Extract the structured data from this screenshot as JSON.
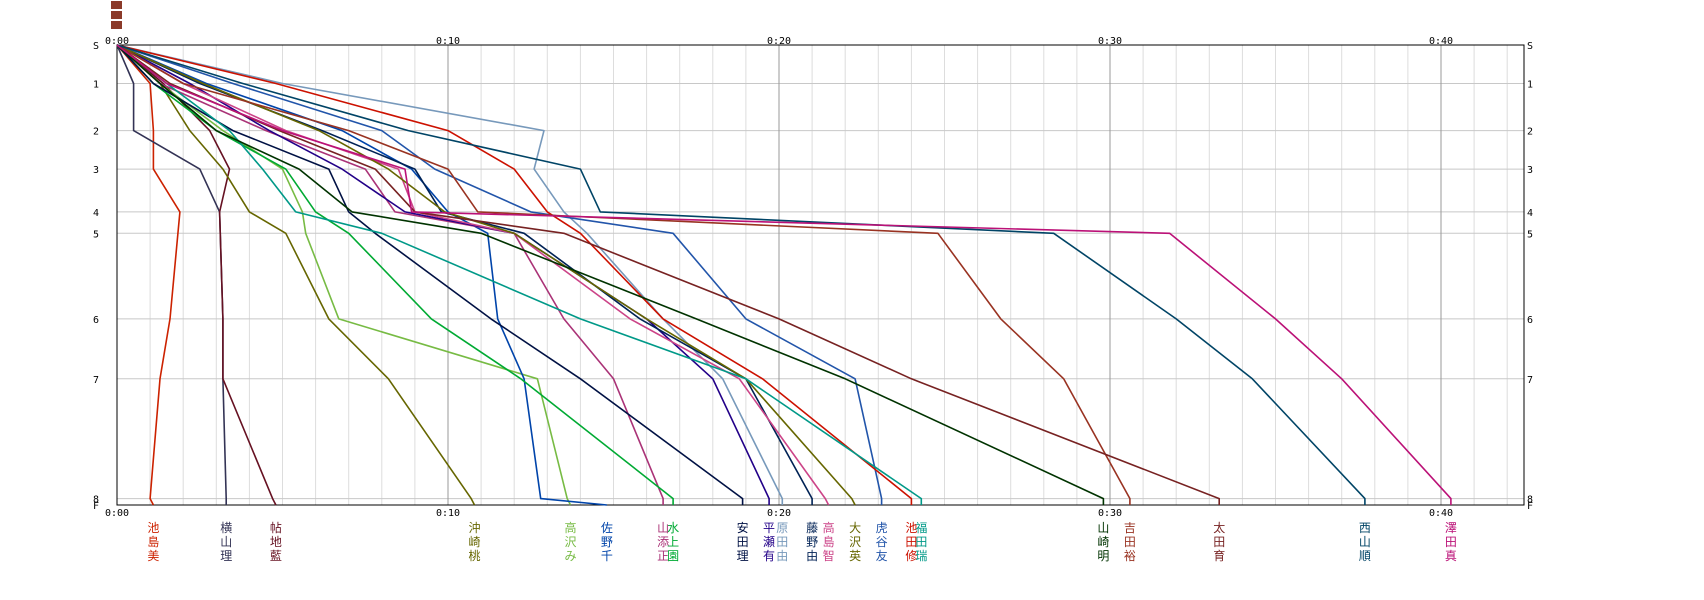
{
  "chart_data": {
    "type": "line",
    "title": "",
    "xlabel": "",
    "ylabel": "",
    "x_unit": "minutes",
    "xlim": [
      0,
      43
    ],
    "grid": true,
    "x_tick_labels": [
      "0:00",
      "0:10",
      "0:20",
      "0:30",
      "0:40"
    ],
    "x_tick_values": [
      0,
      10,
      20,
      30,
      40
    ],
    "y_stations": [
      {
        "label": "S",
        "value": 0
      },
      {
        "label": "1",
        "value": 0.9
      },
      {
        "label": "2",
        "value": 2.0
      },
      {
        "label": "3",
        "value": 2.9
      },
      {
        "label": "4",
        "value": 3.9
      },
      {
        "label": "5",
        "value": 4.4
      },
      {
        "label": "6",
        "value": 6.4
      },
      {
        "label": "7",
        "value": 7.8
      },
      {
        "label": "8",
        "value": 10.6
      },
      {
        "label": "F",
        "value": 10.75
      }
    ],
    "series": [
      {
        "name": "池島美",
        "color": "#cc2200",
        "finish": 1.1,
        "points": [
          [
            0,
            0
          ],
          [
            1.0,
            0.9
          ],
          [
            1.1,
            2.0
          ],
          [
            1.1,
            2.9
          ],
          [
            1.9,
            3.9
          ],
          [
            1.6,
            6.4
          ],
          [
            1.3,
            7.8
          ],
          [
            1.0,
            10.6
          ],
          [
            1.1,
            10.75
          ]
        ]
      },
      {
        "name": "横山理",
        "color": "#333355",
        "finish": 3.3,
        "points": [
          [
            0,
            0
          ],
          [
            0.5,
            0.9
          ],
          [
            0.5,
            2.0
          ],
          [
            2.5,
            2.9
          ],
          [
            3.1,
            3.9
          ],
          [
            3.2,
            6.4
          ],
          [
            3.2,
            7.8
          ],
          [
            3.3,
            10.6
          ],
          [
            3.3,
            10.75
          ]
        ]
      },
      {
        "name": "帖地藍",
        "color": "#661122",
        "finish": 4.8,
        "points": [
          [
            0,
            0
          ],
          [
            1.4,
            0.9
          ],
          [
            2.8,
            2.0
          ],
          [
            3.4,
            2.9
          ],
          [
            3.1,
            3.9
          ],
          [
            3.2,
            6.4
          ],
          [
            3.2,
            7.8
          ],
          [
            4.7,
            10.6
          ],
          [
            4.8,
            10.75
          ]
        ]
      },
      {
        "name": "沖崎桃",
        "color": "#666600",
        "finish": 10.8,
        "points": [
          [
            0,
            0
          ],
          [
            1.3,
            0.9
          ],
          [
            2.2,
            2.0
          ],
          [
            3.2,
            2.9
          ],
          [
            4.0,
            3.9
          ],
          [
            5.1,
            4.4
          ],
          [
            6.4,
            6.4
          ],
          [
            8.2,
            7.8
          ],
          [
            10.7,
            10.6
          ],
          [
            10.8,
            10.75
          ]
        ]
      },
      {
        "name": "高沢み",
        "color": "#77bb44",
        "finish": 13.7,
        "points": [
          [
            0,
            0
          ],
          [
            1.3,
            0.9
          ],
          [
            3.2,
            2.0
          ],
          [
            5.0,
            2.9
          ],
          [
            5.6,
            3.9
          ],
          [
            5.7,
            4.4
          ],
          [
            6.7,
            6.4
          ],
          [
            12.7,
            7.8
          ],
          [
            13.6,
            10.6
          ],
          [
            13.7,
            10.75
          ]
        ]
      },
      {
        "name": "佐野千",
        "color": "#0044aa",
        "finish": 14.8,
        "points": [
          [
            0,
            0
          ],
          [
            2.7,
            0.9
          ],
          [
            6.8,
            2.0
          ],
          [
            8.9,
            2.9
          ],
          [
            10.0,
            3.9
          ],
          [
            11.2,
            4.4
          ],
          [
            11.5,
            6.4
          ],
          [
            12.3,
            7.8
          ],
          [
            12.8,
            10.6
          ],
          [
            14.8,
            10.75
          ]
        ]
      },
      {
        "name": "山添正",
        "color": "#aa3377",
        "finish": 16.5,
        "points": [
          [
            0,
            0
          ],
          [
            1.3,
            0.9
          ],
          [
            4.5,
            2.0
          ],
          [
            7.5,
            2.9
          ],
          [
            8.4,
            3.9
          ],
          [
            12.0,
            4.4
          ],
          [
            13.5,
            6.4
          ],
          [
            15.0,
            7.8
          ],
          [
            16.5,
            10.6
          ],
          [
            16.5,
            10.75
          ]
        ]
      },
      {
        "name": "水上園",
        "color": "#00aa33",
        "finish": 16.8,
        "points": [
          [
            0,
            0
          ],
          [
            1.1,
            0.9
          ],
          [
            3.0,
            2.0
          ],
          [
            5.1,
            2.9
          ],
          [
            6.0,
            3.9
          ],
          [
            7.0,
            4.4
          ],
          [
            9.5,
            6.4
          ],
          [
            12.2,
            7.8
          ],
          [
            16.8,
            10.6
          ],
          [
            16.8,
            10.75
          ]
        ]
      },
      {
        "name": "安田理",
        "color": "#001144",
        "finish": 18.9,
        "points": [
          [
            0,
            0
          ],
          [
            1.1,
            0.9
          ],
          [
            3.5,
            2.0
          ],
          [
            6.4,
            2.9
          ],
          [
            7.0,
            3.9
          ],
          [
            7.8,
            4.4
          ],
          [
            11.3,
            6.4
          ],
          [
            14.0,
            7.8
          ],
          [
            18.9,
            10.6
          ],
          [
            18.9,
            10.75
          ]
        ]
      },
      {
        "name": "平瀬有",
        "color": "#220088",
        "finish": 19.7,
        "points": [
          [
            0,
            0
          ],
          [
            2.2,
            0.9
          ],
          [
            4.6,
            2.0
          ],
          [
            6.8,
            2.9
          ],
          [
            8.7,
            3.9
          ],
          [
            12.0,
            4.4
          ],
          [
            16.0,
            6.4
          ],
          [
            18.0,
            7.8
          ],
          [
            19.7,
            10.6
          ],
          [
            19.7,
            10.75
          ]
        ]
      },
      {
        "name": "原田由",
        "color": "#7799bb",
        "finish": 20.1,
        "points": [
          [
            0,
            0
          ],
          [
            5.0,
            0.9
          ],
          [
            12.9,
            2.0
          ],
          [
            12.6,
            2.9
          ],
          [
            13.5,
            3.9
          ],
          [
            14.2,
            4.4
          ],
          [
            16.5,
            6.4
          ],
          [
            18.3,
            7.8
          ],
          [
            20.1,
            10.6
          ],
          [
            20.1,
            10.75
          ]
        ]
      },
      {
        "name": "藤野由",
        "color": "#002255",
        "finish": 21.0,
        "points": [
          [
            0,
            0
          ],
          [
            2.5,
            0.9
          ],
          [
            6.2,
            2.0
          ],
          [
            9.0,
            2.9
          ],
          [
            9.8,
            3.9
          ],
          [
            12.3,
            4.4
          ],
          [
            15.8,
            6.4
          ],
          [
            19.0,
            7.8
          ],
          [
            21.0,
            10.6
          ],
          [
            21.0,
            10.75
          ]
        ]
      },
      {
        "name": "高島智",
        "color": "#cc4488",
        "finish": 21.5,
        "points": [
          [
            0,
            0
          ],
          [
            2.0,
            0.9
          ],
          [
            5.1,
            2.0
          ],
          [
            8.5,
            2.9
          ],
          [
            9.0,
            3.9
          ],
          [
            12.0,
            4.4
          ],
          [
            15.5,
            6.4
          ],
          [
            18.8,
            7.8
          ],
          [
            21.4,
            10.6
          ],
          [
            21.5,
            10.75
          ]
        ]
      },
      {
        "name": "大沢英",
        "color": "#666600",
        "finish": 22.3,
        "points": [
          [
            0,
            0
          ],
          [
            2.6,
            0.9
          ],
          [
            6.1,
            2.0
          ],
          [
            8.2,
            2.9
          ],
          [
            9.9,
            3.9
          ],
          [
            12.0,
            4.4
          ],
          [
            16.0,
            6.4
          ],
          [
            19.0,
            7.8
          ],
          [
            22.2,
            10.6
          ],
          [
            22.3,
            10.75
          ]
        ]
      },
      {
        "name": "虎谷友",
        "color": "#2255aa",
        "finish": 23.1,
        "points": [
          [
            0,
            0
          ],
          [
            3.5,
            0.9
          ],
          [
            8.0,
            2.0
          ],
          [
            9.6,
            2.9
          ],
          [
            12.5,
            3.9
          ],
          [
            16.8,
            4.4
          ],
          [
            19.0,
            6.4
          ],
          [
            22.3,
            7.8
          ],
          [
            23.1,
            10.6
          ],
          [
            23.1,
            10.75
          ]
        ]
      },
      {
        "name": "池田修",
        "color": "#cc1100",
        "finish": 24.0,
        "points": [
          [
            0,
            0
          ],
          [
            4.8,
            0.9
          ],
          [
            10.0,
            2.0
          ],
          [
            12.0,
            2.9
          ],
          [
            13.0,
            3.9
          ],
          [
            14.0,
            4.4
          ],
          [
            16.5,
            6.4
          ],
          [
            19.5,
            7.8
          ],
          [
            24.0,
            10.6
          ],
          [
            24.0,
            10.75
          ]
        ]
      },
      {
        "name": "福田瑞",
        "color": "#009988",
        "finish": 24.3,
        "points": [
          [
            0,
            0
          ],
          [
            1.5,
            0.9
          ],
          [
            3.4,
            2.0
          ],
          [
            4.4,
            2.9
          ],
          [
            5.4,
            3.9
          ],
          [
            8.0,
            4.4
          ],
          [
            14.0,
            6.4
          ],
          [
            19.0,
            7.8
          ],
          [
            24.3,
            10.6
          ],
          [
            24.3,
            10.75
          ]
        ]
      },
      {
        "name": "山崎明",
        "color": "#003300",
        "finish": 29.8,
        "points": [
          [
            0,
            0
          ],
          [
            1.3,
            0.9
          ],
          [
            3.0,
            2.0
          ],
          [
            5.5,
            2.9
          ],
          [
            7.1,
            3.9
          ],
          [
            11.0,
            4.4
          ],
          [
            17.5,
            6.4
          ],
          [
            22.0,
            7.8
          ],
          [
            29.8,
            10.6
          ],
          [
            29.8,
            10.75
          ]
        ]
      },
      {
        "name": "吉田裕",
        "color": "#993322",
        "finish": 30.6,
        "points": [
          [
            0,
            0
          ],
          [
            2.0,
            0.9
          ],
          [
            7.0,
            2.0
          ],
          [
            10.0,
            2.9
          ],
          [
            10.9,
            3.9
          ],
          [
            24.8,
            4.4
          ],
          [
            26.7,
            6.4
          ],
          [
            28.6,
            7.8
          ],
          [
            30.6,
            10.6
          ],
          [
            30.6,
            10.75
          ]
        ]
      },
      {
        "name": "太田育",
        "color": "#772222",
        "finish": 33.3,
        "points": [
          [
            0,
            0
          ],
          [
            1.6,
            0.9
          ],
          [
            4.9,
            2.0
          ],
          [
            7.8,
            2.9
          ],
          [
            9.0,
            3.9
          ],
          [
            13.5,
            4.4
          ],
          [
            20.0,
            6.4
          ],
          [
            24.0,
            7.8
          ],
          [
            33.3,
            10.6
          ],
          [
            33.3,
            10.75
          ]
        ]
      },
      {
        "name": "西山順",
        "color": "#004466",
        "finish": 37.7,
        "points": [
          [
            0,
            0
          ],
          [
            3.8,
            0.9
          ],
          [
            8.8,
            2.0
          ],
          [
            14.0,
            2.9
          ],
          [
            14.6,
            3.9
          ],
          [
            28.3,
            4.4
          ],
          [
            32.0,
            6.4
          ],
          [
            34.3,
            7.8
          ],
          [
            37.7,
            10.6
          ],
          [
            37.7,
            10.75
          ]
        ]
      },
      {
        "name": "澤田真",
        "color": "#bb1177",
        "finish": 40.3,
        "points": [
          [
            0,
            0
          ],
          [
            1.5,
            0.9
          ],
          [
            5.0,
            2.0
          ],
          [
            8.7,
            2.9
          ],
          [
            8.9,
            3.9
          ],
          [
            31.8,
            4.4
          ],
          [
            35.0,
            6.4
          ],
          [
            37.0,
            7.8
          ],
          [
            40.3,
            10.6
          ],
          [
            40.3,
            10.75
          ]
        ]
      }
    ]
  }
}
